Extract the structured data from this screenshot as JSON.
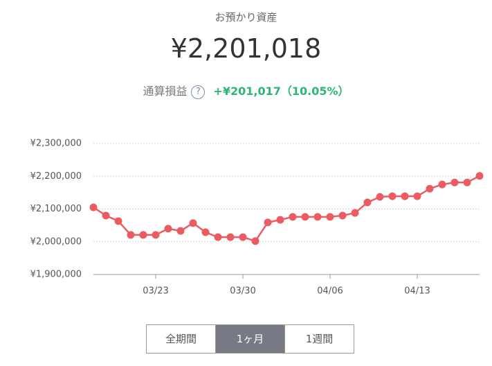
{
  "header": {
    "label": "お預かり資産",
    "total": "¥2,201,018",
    "profit_label": "通算損益",
    "help_icon": "?",
    "profit": "+¥201,017（10.05%）"
  },
  "chart_data": {
    "type": "line",
    "categories": [
      null,
      null,
      null,
      null,
      null,
      "03/23",
      null,
      null,
      null,
      null,
      null,
      null,
      "03/30",
      null,
      null,
      null,
      null,
      null,
      null,
      "04/06",
      null,
      null,
      null,
      null,
      null,
      null,
      "04/13",
      null,
      null,
      null,
      null,
      null
    ],
    "series": [
      {
        "color": "#eb5b62",
        "values": [
          2105000,
          2080000,
          2063000,
          2021000,
          2021000,
          2021000,
          2040000,
          2033000,
          2057000,
          2029000,
          2014000,
          2014000,
          2014000,
          2002000,
          2059000,
          2067000,
          2076000,
          2076000,
          2076000,
          2076000,
          2080000,
          2088000,
          2120000,
          2137000,
          2139000,
          2139000,
          2139000,
          2162000,
          2175000,
          2181000,
          2181000,
          2201018
        ]
      }
    ],
    "ylim": [
      1900000,
      2300000
    ],
    "yticks": [
      {
        "value": 1900000,
        "label": "¥1,900,000"
      },
      {
        "value": 2000000,
        "label": "¥2,000,000"
      },
      {
        "value": 2100000,
        "label": "¥2,100,000"
      },
      {
        "value": 2200000,
        "label": "¥2,200,000"
      },
      {
        "value": 2300000,
        "label": "¥2,300,000"
      }
    ],
    "grid": true
  },
  "buttons": [
    "全期間",
    "1ヶ月",
    "1週間"
  ]
}
